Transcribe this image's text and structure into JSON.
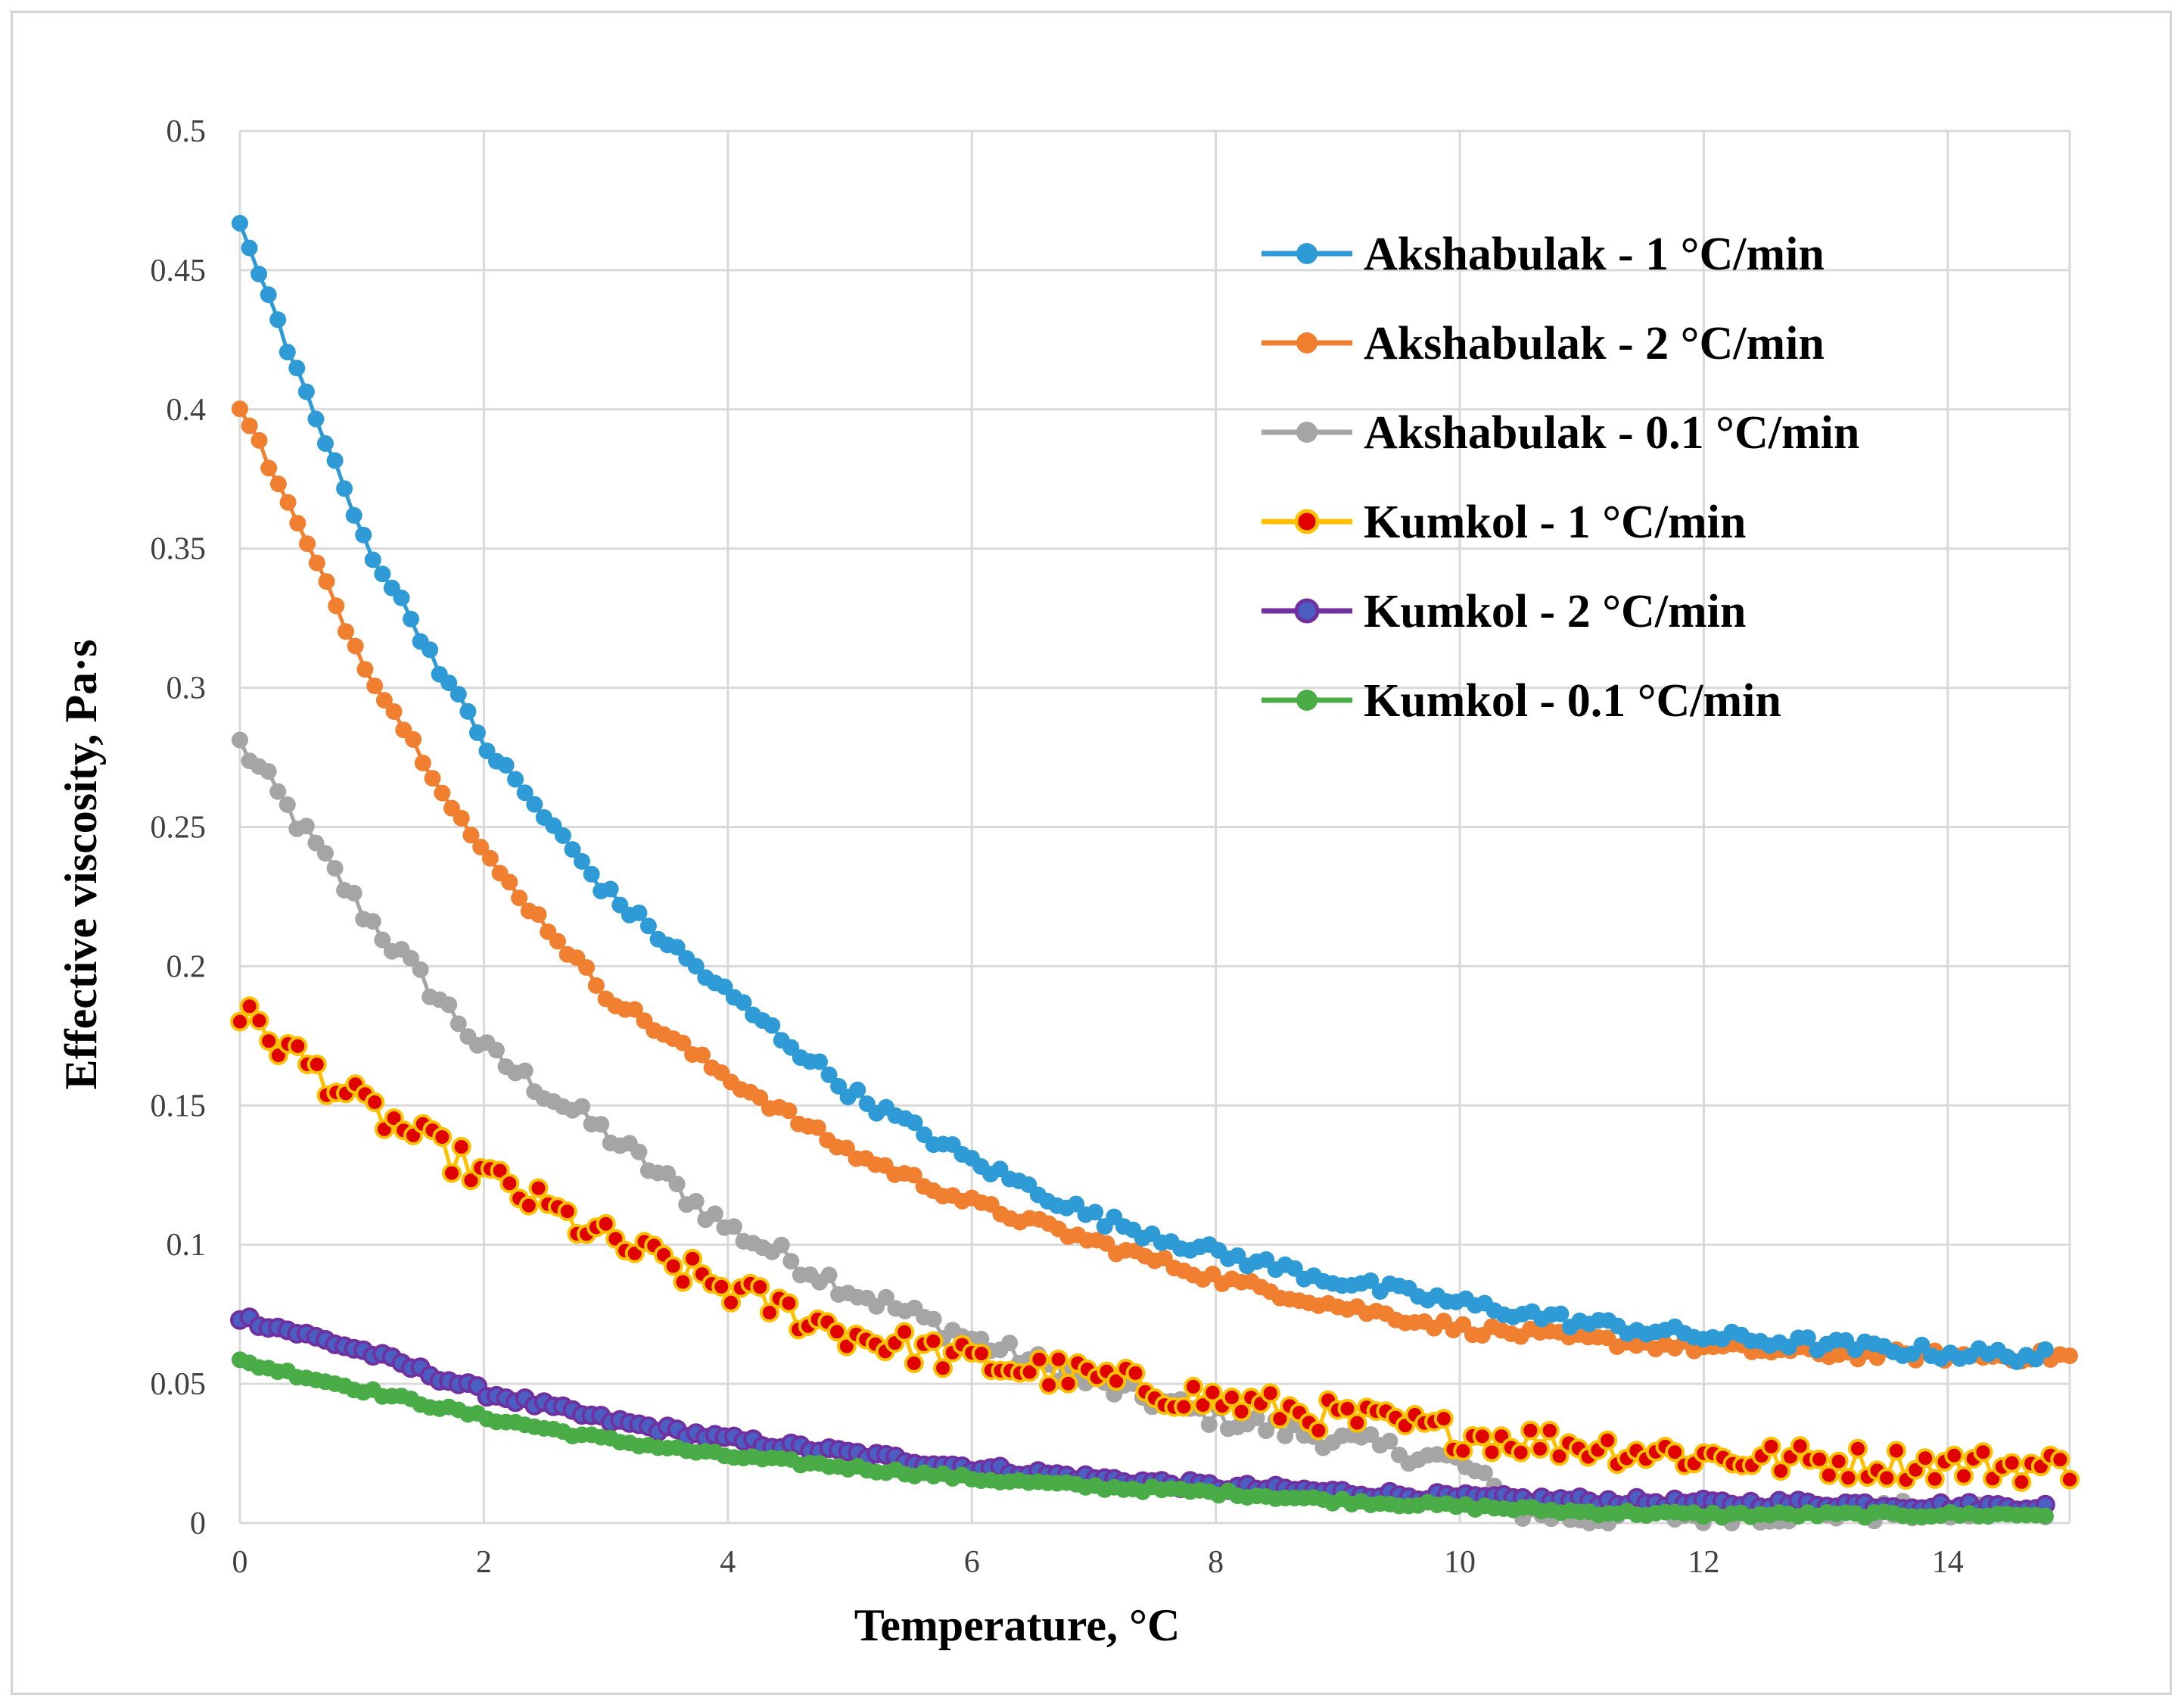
{
  "chart_data": {
    "type": "scatter",
    "title": "",
    "xlabel": "Temperature, °C",
    "ylabel": "Effective viscosity, Pa·s",
    "xlim": [
      0,
      15
    ],
    "ylim": [
      0,
      0.5
    ],
    "x_ticks": [
      "0",
      "2",
      "4",
      "6",
      "8",
      "10",
      "12",
      "14"
    ],
    "y_ticks": [
      "0",
      "0.05",
      "0.1",
      "0.15",
      "0.2",
      "0.25",
      "0.3",
      "0.35",
      "0.4",
      "0.45",
      "0.5"
    ],
    "grid": true,
    "legend_position": "top-right",
    "series": [
      {
        "name": "Akshabulak - 1 °C/min",
        "color": "#2e9bd6",
        "marker_fill": "#2e9bd6",
        "line_color": "#2e9bd6",
        "x": [
          0,
          1,
          2,
          3,
          4,
          5,
          6,
          7,
          8,
          9,
          10,
          11,
          12,
          13,
          14,
          14.8
        ],
        "y": [
          0.466,
          0.355,
          0.28,
          0.227,
          0.19,
          0.155,
          0.13,
          0.11,
          0.097,
          0.087,
          0.079,
          0.072,
          0.067,
          0.064,
          0.061,
          0.06
        ]
      },
      {
        "name": "Akshabulak - 2 °C/min",
        "color": "#f07f30",
        "marker_fill": "#f07f30",
        "line_color": "#f07f30",
        "x": [
          0,
          1,
          2,
          3,
          4,
          5,
          6,
          7,
          8,
          9,
          10,
          11,
          12,
          13,
          14,
          15
        ],
        "y": [
          0.402,
          0.31,
          0.24,
          0.19,
          0.16,
          0.133,
          0.115,
          0.101,
          0.088,
          0.078,
          0.07,
          0.066,
          0.063,
          0.061,
          0.06,
          0.06
        ]
      },
      {
        "name": "Akshabulak - 0.1 °C/min",
        "color": "#a5a5a5",
        "marker_fill": "#a5a5a5",
        "line_color": "#a5a5a5",
        "x": [
          0,
          1,
          2,
          3,
          4,
          5,
          6,
          7,
          8,
          9,
          10,
          10.5,
          11,
          12,
          13,
          14,
          14.8
        ],
        "y": [
          0.28,
          0.22,
          0.17,
          0.14,
          0.106,
          0.084,
          0.066,
          0.05,
          0.038,
          0.03,
          0.022,
          0.004,
          0.002,
          0.003,
          0.004,
          0.004,
          0.004
        ]
      },
      {
        "name": "Kumkol - 1 °C/min",
        "color": "#ffc000",
        "marker_fill": "#e00000",
        "line_color": "#ffc000",
        "x": [
          0,
          1,
          2,
          3,
          4,
          5,
          6,
          7,
          8,
          9,
          10,
          11,
          12,
          13,
          14,
          15
        ],
        "y": [
          0.183,
          0.15,
          0.125,
          0.102,
          0.084,
          0.068,
          0.058,
          0.052,
          0.044,
          0.038,
          0.032,
          0.028,
          0.024,
          0.022,
          0.021,
          0.02
        ]
      },
      {
        "name": "Kumkol - 2 °C/min",
        "color": "#7030a0",
        "marker_fill": "#4a5fc1",
        "line_color": "#7030a0",
        "x": [
          0,
          1,
          2,
          3,
          4,
          5,
          6,
          7,
          8,
          9,
          10,
          11,
          12,
          13,
          14,
          14.8
        ],
        "y": [
          0.074,
          0.062,
          0.047,
          0.037,
          0.03,
          0.025,
          0.02,
          0.016,
          0.013,
          0.011,
          0.009,
          0.008,
          0.007,
          0.007,
          0.006,
          0.006
        ]
      },
      {
        "name": "Kumkol - 0.1 °C/min",
        "color": "#4aac47",
        "marker_fill": "#4aac47",
        "line_color": "#4aac47",
        "x": [
          0,
          1,
          2,
          3,
          4,
          5,
          6,
          7,
          8,
          9,
          10,
          11,
          12,
          13,
          14,
          14.8
        ],
        "y": [
          0.058,
          0.048,
          0.038,
          0.03,
          0.024,
          0.02,
          0.016,
          0.013,
          0.011,
          0.008,
          0.006,
          0.004,
          0.003,
          0.003,
          0.003,
          0.003
        ]
      }
    ]
  }
}
